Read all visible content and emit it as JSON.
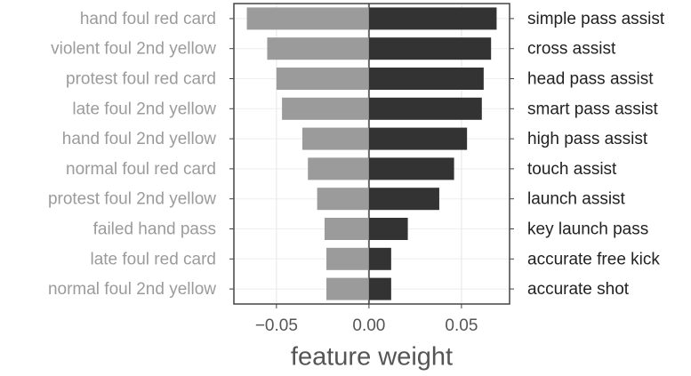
{
  "chart_data": {
    "type": "diverging-bar",
    "xlabel": "feature weight",
    "series": [
      {
        "color": "#9b9b9b",
        "label_color": "#9b9b9b",
        "categories": [
          "hand foul red card",
          "violent foul 2nd yellow",
          "protest foul red card",
          "late foul 2nd yellow",
          "hand foul 2nd yellow",
          "normal foul red card",
          "protest foul 2nd yellow",
          "failed hand pass",
          "late foul red card",
          "normal foul 2nd yellow"
        ],
        "values": [
          -0.066,
          -0.055,
          -0.05,
          -0.047,
          -0.036,
          -0.033,
          -0.028,
          -0.024,
          -0.023,
          -0.023
        ]
      },
      {
        "color": "#333333",
        "label_color": "#222222",
        "categories": [
          "simple pass assist",
          "cross assist",
          "head pass assist",
          "smart pass assist",
          "high pass assist",
          "touch assist",
          "launch assist",
          "key launch pass",
          "accurate free kick",
          "accurate shot"
        ],
        "values": [
          0.069,
          0.066,
          0.062,
          0.061,
          0.053,
          0.046,
          0.038,
          0.021,
          0.012,
          0.012
        ]
      }
    ],
    "xlim": [
      -0.073,
      0.076
    ],
    "xticks": [
      {
        "value": -0.05,
        "label": "−0.05"
      },
      {
        "value": 0,
        "label": "0.00"
      },
      {
        "value": 0.05,
        "label": "0.05"
      }
    ],
    "grid": true
  }
}
